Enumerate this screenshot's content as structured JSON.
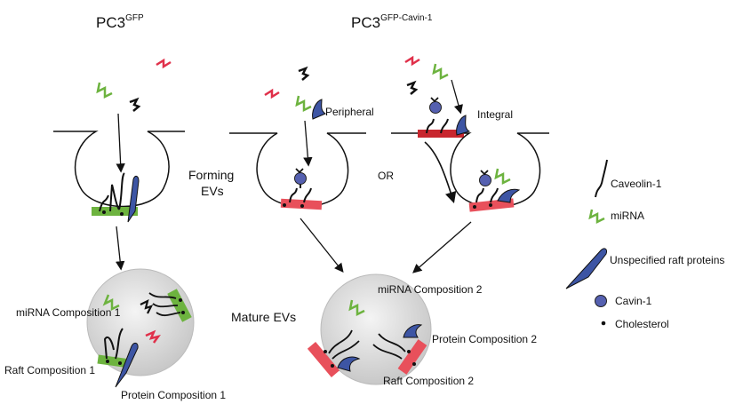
{
  "titles": {
    "left_base": "PC3",
    "left_sup": "GFP",
    "right_base": "PC3",
    "right_sup": "GFP-Cavin-1"
  },
  "labels": {
    "forming": "Forming",
    "evs": "EVs",
    "or": "OR",
    "peripheral": "Peripheral",
    "integral": "Integral",
    "mature": "Mature EVs",
    "mirna_comp_1": "miRNA Composition 1",
    "raft_comp_1": "Raft Composition 1",
    "protein_comp_1": "Protein Composition 1",
    "mirna_comp_2": "miRNA Composition 2",
    "protein_comp_2": "Protein Composition 2",
    "raft_comp_2": "Raft Composition 2"
  },
  "legend": {
    "items": [
      {
        "icon": "caveolin-icon",
        "label": "Caveolin-1"
      },
      {
        "icon": "mirna-icon",
        "label": "miRNA"
      },
      {
        "icon": "raft-protein-icon",
        "label": "Unspecified raft proteins"
      },
      {
        "icon": "cavin-icon",
        "label": "Cavin-1"
      },
      {
        "icon": "cholesterol-icon",
        "label": "Cholesterol"
      }
    ]
  },
  "colors": {
    "green_raft": "#6db33f",
    "red_raft": "#e8505b",
    "dark_red_raft": "#c8262e",
    "mirna_green": "#6db33f",
    "mirna_red": "#e0304a",
    "protein_blue": "#3d55a4",
    "cavin_blue": "#5560b0",
    "ev_grey": "#d6d6d6"
  }
}
